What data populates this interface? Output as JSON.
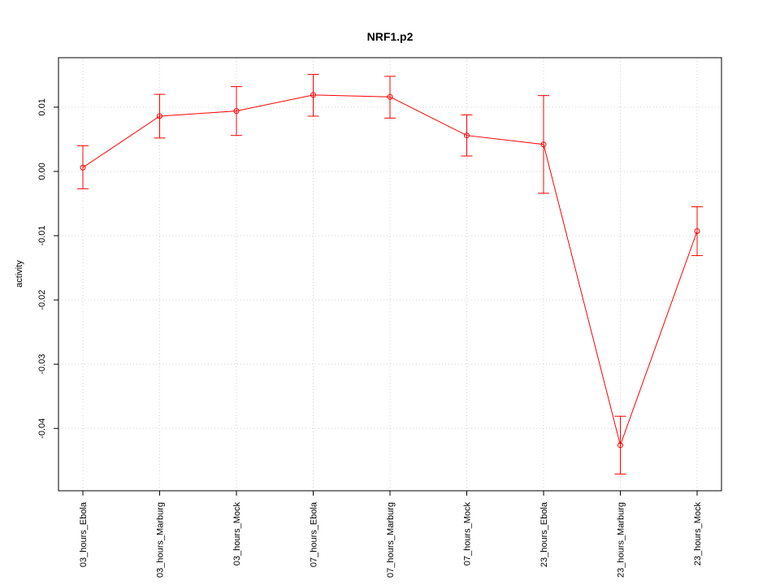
{
  "chart_data": {
    "type": "line",
    "title": "NRF1.p2",
    "xlabel": "",
    "ylabel": "activity",
    "categories": [
      "03_hours_Ebola",
      "03_hours_Marburg",
      "03_hours_Mock",
      "07_hours_Ebola",
      "07_hours_Marburg",
      "07_hours_Mock",
      "23_hours_Ebola",
      "23_hours_Marburg",
      "23_hours_Mock"
    ],
    "series": [
      {
        "values": [
          0.0006,
          0.0086,
          0.0094,
          0.0119,
          0.0116,
          0.0056,
          0.0042,
          -0.0426,
          -0.0093
        ],
        "lower": [
          -0.0027,
          0.0052,
          0.0056,
          0.0086,
          0.0083,
          0.0024,
          -0.0034,
          -0.0471,
          -0.0131
        ],
        "upper": [
          0.004,
          0.012,
          0.0132,
          0.0151,
          0.0148,
          0.0088,
          0.0118,
          -0.0381,
          -0.0055
        ]
      }
    ],
    "yticks": [
      "0.01",
      "0.00",
      "-0.01",
      "-0.02",
      "-0.03",
      "-0.04"
    ],
    "ytick_values": [
      0.01,
      0.0,
      -0.01,
      -0.02,
      -0.03,
      -0.04
    ],
    "ylim": [
      -0.0497,
      0.0177
    ],
    "grid": true,
    "series_color": "#ff0000",
    "grid_color": "#d3d3d3"
  }
}
